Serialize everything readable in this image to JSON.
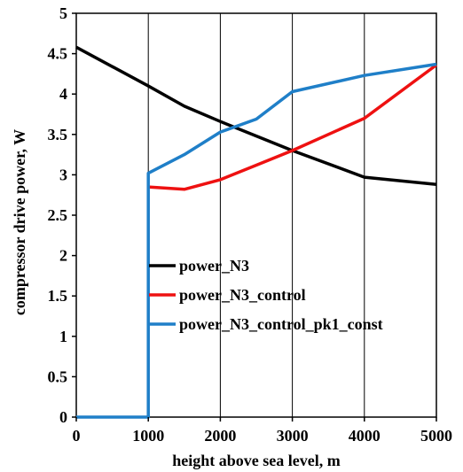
{
  "chart_data": {
    "type": "line",
    "title": "",
    "xlabel": "height above sea level, m",
    "ylabel": "compressor drive power, W",
    "xlim": [
      0,
      5000
    ],
    "ylim": [
      0,
      5
    ],
    "x_ticks": [
      0,
      1000,
      2000,
      3000,
      4000,
      5000
    ],
    "y_ticks": [
      0,
      0.5,
      1,
      1.5,
      2,
      2.5,
      3,
      3.5,
      4,
      4.5,
      5
    ],
    "x_tick_labels": [
      "0",
      "1000",
      "2000",
      "3000",
      "4000",
      "5000"
    ],
    "y_tick_labels": [
      "0",
      "0.5",
      "1",
      "1.5",
      "2",
      "2.5",
      "3",
      "3.5",
      "4",
      "4.5",
      "5"
    ],
    "grid": "vertical",
    "legend_position": "center",
    "series": [
      {
        "name": "power_N3",
        "color": "#000000",
        "points": [
          [
            0,
            4.58
          ],
          [
            1000,
            4.1
          ],
          [
            1500,
            3.85
          ],
          [
            2000,
            3.66
          ],
          [
            2500,
            3.48
          ],
          [
            3000,
            3.3
          ],
          [
            4000,
            2.97
          ],
          [
            5000,
            2.88
          ]
        ]
      },
      {
        "name": "power_N3_control",
        "color": "#ee1111",
        "points": [
          [
            1000,
            2.85
          ],
          [
            1500,
            2.82
          ],
          [
            2000,
            2.94
          ],
          [
            2500,
            3.12
          ],
          [
            3000,
            3.3
          ],
          [
            4000,
            3.7
          ],
          [
            5000,
            4.36
          ]
        ]
      },
      {
        "name": "power_N3_control_pk1_const",
        "color": "#1f7fc8",
        "points": [
          [
            0,
            0
          ],
          [
            1000,
            0
          ],
          [
            1000,
            3.02
          ],
          [
            1500,
            3.25
          ],
          [
            2000,
            3.53
          ],
          [
            2500,
            3.69
          ],
          [
            3000,
            4.03
          ],
          [
            4000,
            4.23
          ],
          [
            5000,
            4.37
          ]
        ]
      }
    ]
  }
}
